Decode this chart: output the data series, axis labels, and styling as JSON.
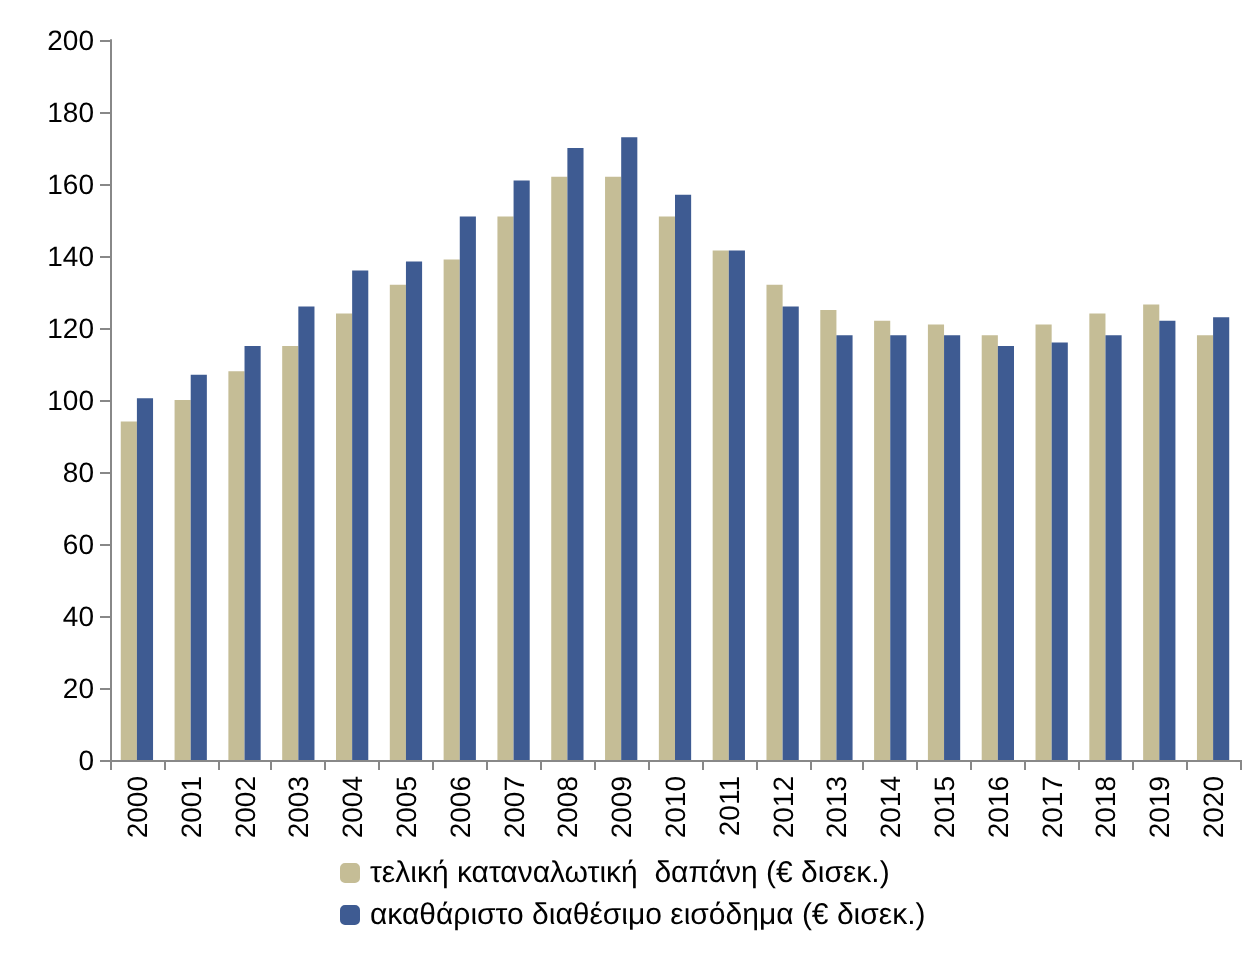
{
  "chart_data": {
    "type": "bar",
    "categories": [
      "2000",
      "2001",
      "2002",
      "2003",
      "2004",
      "2005",
      "2006",
      "2007",
      "2008",
      "2009",
      "2010",
      "2011",
      "2012",
      "2013",
      "2014",
      "2015",
      "2016",
      "2017",
      "2018",
      "2019",
      "2020"
    ],
    "series": [
      {
        "name": "τελική καταναλωτική  δαπάνη (€ δισεκ.)",
        "color": "#c5bd96",
        "values": [
          94,
          100,
          108,
          115,
          124,
          132,
          139,
          151,
          162,
          162,
          151,
          141.5,
          132,
          125,
          122,
          121,
          118,
          121,
          124,
          126.5,
          118
        ]
      },
      {
        "name": "ακαθάριστο διαθέσιμο εισόδημα (€ δισεκ.)",
        "color": "#3e5b92",
        "values": [
          100.5,
          107,
          115,
          126,
          136,
          138.5,
          151,
          161,
          170,
          173,
          157,
          141.5,
          126,
          118,
          118,
          118,
          115,
          116,
          118,
          122,
          123
        ]
      }
    ],
    "ylim": [
      0,
      200
    ],
    "yticks": [
      0,
      20,
      40,
      60,
      80,
      100,
      120,
      140,
      160,
      180,
      200
    ],
    "grid": false,
    "legend": "bottom"
  }
}
